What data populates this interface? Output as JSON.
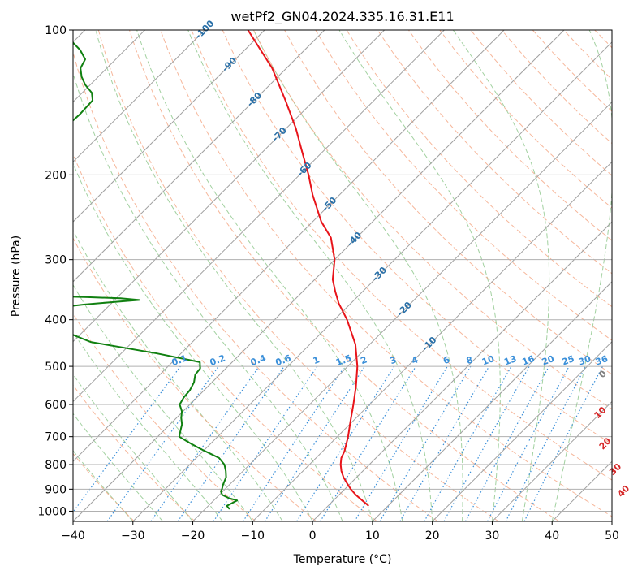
{
  "chart_data": {
    "type": "line",
    "title": "wetPf2_GN04.2024.335.16.31.E11",
    "xlabel": "Temperature (°C)",
    "ylabel": "Pressure (hPa)",
    "xlim": [
      -40,
      50
    ],
    "ylim": [
      1050,
      100
    ],
    "y_scale": "log",
    "grid": true,
    "x_ticks": [
      -40,
      -30,
      -20,
      -10,
      0,
      10,
      20,
      30,
      40,
      50
    ],
    "y_ticks": [
      100,
      200,
      300,
      400,
      500,
      600,
      700,
      800,
      900,
      1000
    ],
    "skew_angle_deg": 45,
    "colors": {
      "temperature": "#e8141a",
      "dewpoint": "#108010",
      "isotherm": "#a0a0a0",
      "dry_adiabat": "#f4a582",
      "moist_adiabat": "#92c98f",
      "mixing_ratio": "#3a8fd9",
      "isotherm_label": "#2a70a8",
      "dry_adiabat_label": "#d62728",
      "dry_adiabat_zero_label": "#808080"
    },
    "series": [
      {
        "key": "temperature",
        "pressure": [
          975,
          950,
          925,
          900,
          875,
          850,
          825,
          800,
          775,
          750,
          700,
          650,
          600,
          550,
          500,
          450,
          400,
          370,
          350,
          330,
          300,
          270,
          250,
          220,
          200,
          180,
          160,
          140,
          120,
          100
        ],
        "values": [
          6.8,
          4.8,
          2.8,
          1.0,
          -0.6,
          -2.2,
          -3.6,
          -4.8,
          -5.8,
          -6.4,
          -8.2,
          -10.4,
          -12.7,
          -15.3,
          -18.4,
          -22.4,
          -27.9,
          -32.0,
          -34.5,
          -37.0,
          -40.0,
          -44.3,
          -48.6,
          -54.5,
          -58.5,
          -63.2,
          -68.4,
          -74.8,
          -82.4,
          -92.8
        ]
      },
      {
        "key": "dewpoint",
        "pressure": [
          990,
          975,
          950,
          940,
          925,
          910,
          900,
          880,
          850,
          825,
          800,
          775,
          760,
          740,
          720,
          700,
          680,
          660,
          640,
          620,
          600,
          580,
          560,
          540,
          520,
          505,
          490,
          470,
          445,
          420,
          400,
          390,
          383,
          377,
          372,
          368,
          364,
          361,
          359,
          357,
          355,
          350,
          330,
          300,
          270,
          240,
          220,
          200,
          190,
          175,
          170,
          165,
          160,
          157,
          150,
          140,
          135,
          130,
          125,
          120,
          115,
          110,
          105,
          100
        ],
        "values": [
          -15.9,
          -16.9,
          -16.1,
          -17.8,
          -19.5,
          -20.3,
          -20.5,
          -21.1,
          -21.8,
          -22.9,
          -24.2,
          -26.2,
          -28.3,
          -31.1,
          -33.8,
          -36.4,
          -37.2,
          -38.0,
          -39.2,
          -40.2,
          -41.7,
          -42.2,
          -42.4,
          -43.0,
          -44.1,
          -44.3,
          -45.4,
          -54.0,
          -67.0,
          -74.0,
          -77.5,
          -78.4,
          -79.0,
          -78.2,
          -74.4,
          -70.4,
          -65.9,
          -69.3,
          -75.0,
          -82.0,
          -86.7,
          -91.5,
          -97.0,
          -103.0,
          -109.0,
          -114.0,
          -117.5,
          -121.4,
          -122.1,
          -122.9,
          -122.3,
          -121.0,
          -121.0,
          -107.0,
          -106.8,
          -107.0,
          -108.4,
          -110.8,
          -112.8,
          -114.4,
          -115.1,
          -117.5,
          -120.7,
          -124.0
        ]
      }
    ],
    "isotherm_labels": [
      -100,
      -90,
      -80,
      -70,
      -60,
      -50,
      -40,
      -30,
      -20,
      -10
    ],
    "mixing_ratio_labels": [
      "0.1",
      "0.2",
      "0.4",
      "0.6",
      "1",
      "1.5",
      "2",
      "3",
      "4",
      "6",
      "8",
      "10",
      "13",
      "16",
      "20",
      "25",
      "30",
      "36"
    ],
    "dry_adiabat_labels": [
      "0",
      "10",
      "20",
      "30",
      "40"
    ]
  }
}
